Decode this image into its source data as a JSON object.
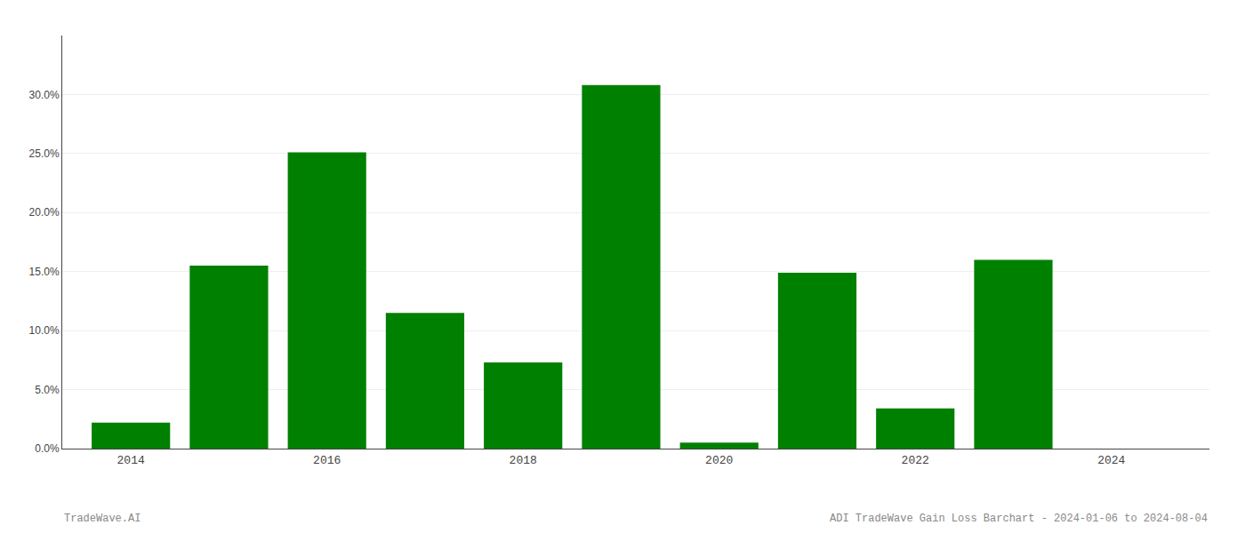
{
  "chart_data": {
    "type": "bar",
    "x": [
      2014,
      2015,
      2016,
      2017,
      2018,
      2019,
      2020,
      2021,
      2022,
      2023,
      2024
    ],
    "values": [
      0.022,
      0.155,
      0.251,
      0.115,
      0.073,
      0.308,
      0.005,
      0.149,
      0.034,
      0.16,
      0.0
    ],
    "color": "#008000",
    "xlim": [
      2013.3,
      2025.0
    ],
    "xticks": [
      2014,
      2016,
      2018,
      2020,
      2022,
      2024
    ],
    "ylim": [
      0,
      0.35
    ],
    "yticks": [
      {
        "value": 0.0,
        "label": "0.0%"
      },
      {
        "value": 0.05,
        "label": "5.0%"
      },
      {
        "value": 0.1,
        "label": "10.0%"
      },
      {
        "value": 0.15,
        "label": "15.0%"
      },
      {
        "value": 0.2,
        "label": "20.0%"
      },
      {
        "value": 0.25,
        "label": "25.0%"
      },
      {
        "value": 0.3,
        "label": "30.0%"
      }
    ],
    "grid": true,
    "annotations": [
      "TradeWave.AI",
      "ADI TradeWave Gain Loss Barchart - 2024-01-06 to 2024-08-04"
    ]
  }
}
